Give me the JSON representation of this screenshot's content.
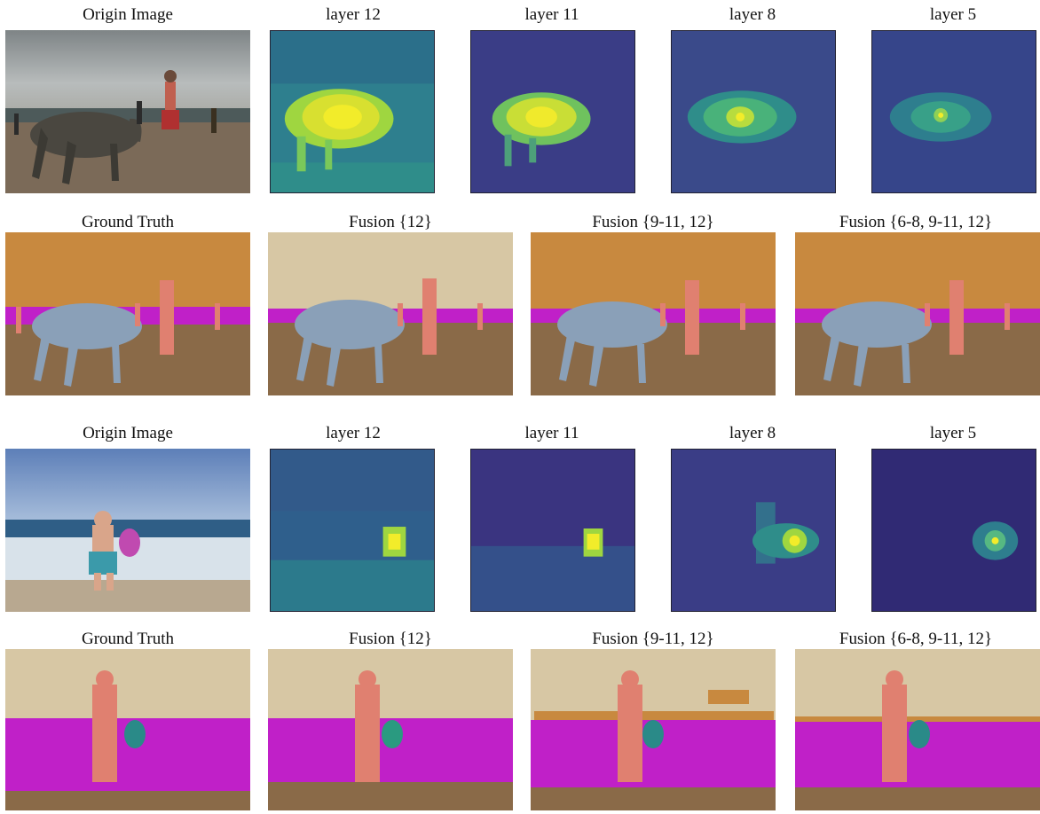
{
  "captions": {
    "origin": "Origin Image",
    "layer12": "layer 12",
    "layer11": "layer 11",
    "layer8": "layer 8",
    "layer5": "layer 5",
    "gt": "Ground Truth",
    "fusion12": "Fusion {12}",
    "fusion9_12": "Fusion {9-11, 12}",
    "fusion6_12": "Fusion {6-8, 9-11, 12}"
  },
  "colors": {
    "sky_sand": "#d7c7a4",
    "sky_orange": "#c8893f",
    "ground_brown": "#8a6a48",
    "sea_magenta": "#c020c8",
    "person_pink": "#e08070",
    "cow_blue": "#8aa0b8",
    "frisbee_teal": "#2a8a88",
    "heat_dark": "#3b2a7a",
    "heat_bright": "#e8e838"
  }
}
